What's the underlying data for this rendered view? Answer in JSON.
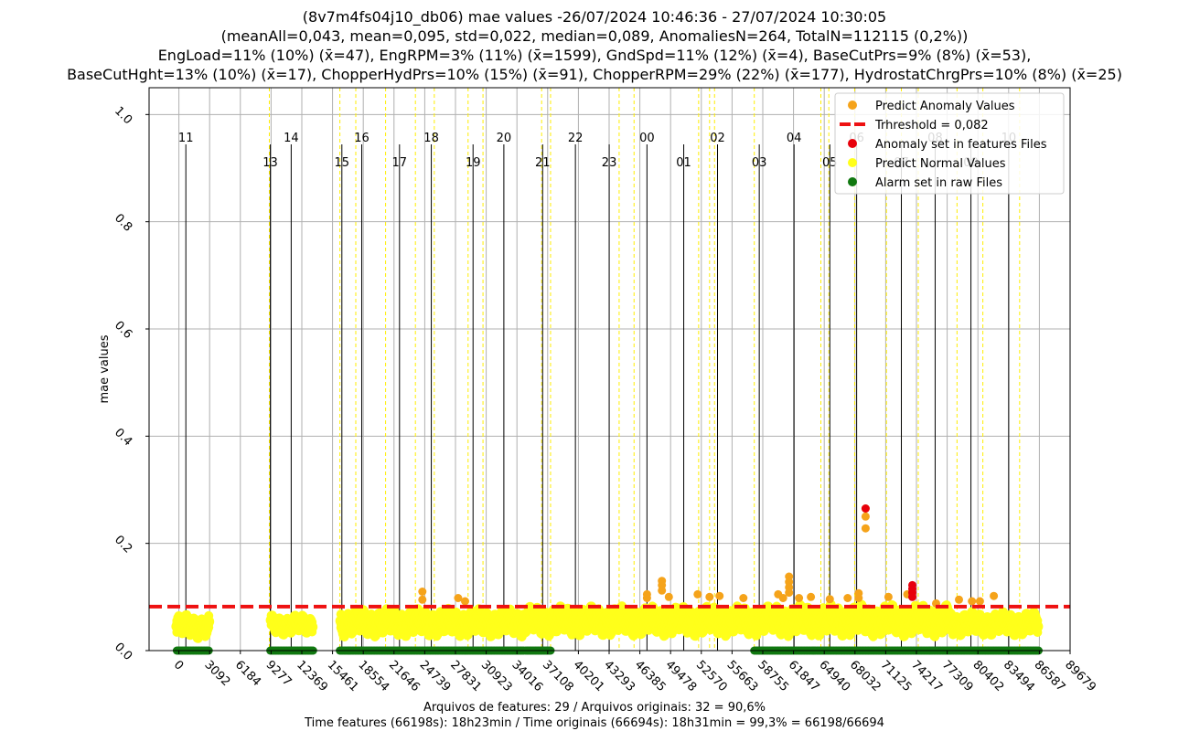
{
  "chart_data": {
    "type": "scatter",
    "title_lines": [
      "(8v7m4fs04j10_db06) mae values -26/07/2024 10:46:36 - 27/07/2024 10:30:05",
      "(meanAll=0,043, mean=0,095, std=0,022, median=0,089, AnomaliesN=264, TotalN=112115 (0,2%))",
      "EngLoad=11% (10%) (x̄=47), EngRPM=3% (11%) (x̄=1599), GndSpd=11% (12%) (x̄=4), BaseCutPrs=9% (8%) (x̄=53),",
      "BaseCutHght=13% (10%) (x̄=17), ChopperHydPrs=10% (15%) (x̄=91), ChopperRPM=29% (22%) (x̄=177), HydrostatChrgPrs=10% (8%) (x̄=25)"
    ],
    "ylabel": "mae values",
    "xlim": [
      -3000,
      89679
    ],
    "ylim": [
      0.0,
      1.05
    ],
    "x_ticks": [
      0,
      3092,
      6184,
      9277,
      12369,
      15461,
      18554,
      21646,
      24739,
      27831,
      30923,
      34016,
      37108,
      40201,
      43293,
      46385,
      49478,
      52570,
      55663,
      58755,
      61847,
      64940,
      68032,
      71125,
      74217,
      77309,
      80402,
      83494,
      86587,
      89679
    ],
    "y_ticks": [
      0.0,
      0.2,
      0.4,
      0.6,
      0.8,
      1.0
    ],
    "y_tick_labels": [
      "0.0",
      "0.2",
      "0.4",
      "0.6",
      "0.8",
      "1.0"
    ],
    "threshold": 0.082,
    "hour_lines": [
      {
        "label": "11",
        "x": 700,
        "row": 0
      },
      {
        "label": "13",
        "x": 9200,
        "row": 1
      },
      {
        "label": "14",
        "x": 11300,
        "row": 0
      },
      {
        "label": "15",
        "x": 16400,
        "row": 1
      },
      {
        "label": "16",
        "x": 18400,
        "row": 0
      },
      {
        "label": "17",
        "x": 22200,
        "row": 1
      },
      {
        "label": "18",
        "x": 25400,
        "row": 0
      },
      {
        "label": "19",
        "x": 29600,
        "row": 1
      },
      {
        "label": "20",
        "x": 32700,
        "row": 0
      },
      {
        "label": "21",
        "x": 36600,
        "row": 1
      },
      {
        "label": "22",
        "x": 39900,
        "row": 0
      },
      {
        "label": "23",
        "x": 43300,
        "row": 1
      },
      {
        "label": "00",
        "x": 47100,
        "row": 0
      },
      {
        "label": "01",
        "x": 50800,
        "row": 1
      },
      {
        "label": "02",
        "x": 54200,
        "row": 0
      },
      {
        "label": "03",
        "x": 58400,
        "row": 1
      },
      {
        "label": "04",
        "x": 61900,
        "row": 0
      },
      {
        "label": "05",
        "x": 65500,
        "row": 1
      },
      {
        "label": "06",
        "x": 68200,
        "row": 0
      },
      {
        "label": "07",
        "x": 72700,
        "row": 1
      },
      {
        "label": "08",
        "x": 76100,
        "row": 0
      },
      {
        "label": "09",
        "x": 79700,
        "row": 1
      },
      {
        "label": "10",
        "x": 83500,
        "row": 0
      }
    ],
    "file_boundaries": [
      9100,
      16200,
      17800,
      20800,
      23800,
      25700,
      29100,
      30600,
      36500,
      37400,
      44300,
      45800,
      52300,
      53400,
      53900,
      57900,
      64600,
      65400,
      68000,
      71200,
      72700,
      74400,
      78300,
      80900,
      84600
    ],
    "segments": [
      {
        "x0": -200,
        "x1": 3000,
        "base": 0.045,
        "amp": 0.012
      },
      {
        "x0": 9300,
        "x1": 13400,
        "base": 0.048,
        "amp": 0.01
      },
      {
        "x0": 16300,
        "x1": 34600,
        "base": 0.052,
        "amp": 0.014
      },
      {
        "x0": 34700,
        "x1": 59500,
        "base": 0.055,
        "amp": 0.015
      },
      {
        "x0": 59700,
        "x1": 77700,
        "base": 0.056,
        "amp": 0.016
      },
      {
        "x0": 77900,
        "x1": 86400,
        "base": 0.05,
        "amp": 0.012
      }
    ],
    "alarm_ranges": [
      [
        -200,
        3000
      ],
      [
        9200,
        13500
      ],
      [
        16200,
        34700
      ],
      [
        34900,
        37400
      ],
      [
        57900,
        86500
      ]
    ],
    "predict_anomaly_points": [
      [
        24500,
        0.11
      ],
      [
        24500,
        0.095
      ],
      [
        28100,
        0.098
      ],
      [
        28800,
        0.092
      ],
      [
        47100,
        0.105
      ],
      [
        47100,
        0.098
      ],
      [
        48600,
        0.13
      ],
      [
        48600,
        0.122
      ],
      [
        48600,
        0.112
      ],
      [
        49300,
        0.1
      ],
      [
        52200,
        0.105
      ],
      [
        53400,
        0.1
      ],
      [
        54400,
        0.102
      ],
      [
        56800,
        0.098
      ],
      [
        60300,
        0.105
      ],
      [
        60800,
        0.098
      ],
      [
        61400,
        0.138
      ],
      [
        61400,
        0.128
      ],
      [
        61400,
        0.118
      ],
      [
        61400,
        0.108
      ],
      [
        62400,
        0.098
      ],
      [
        63600,
        0.1
      ],
      [
        65500,
        0.096
      ],
      [
        67300,
        0.098
      ],
      [
        68400,
        0.107
      ],
      [
        68400,
        0.098
      ],
      [
        69100,
        0.228
      ],
      [
        69100,
        0.25
      ],
      [
        69100,
        0.265
      ],
      [
        71400,
        0.1
      ],
      [
        73300,
        0.105
      ],
      [
        76200,
        0.088
      ],
      [
        78500,
        0.095
      ],
      [
        79800,
        0.092
      ],
      [
        80600,
        0.092
      ],
      [
        82000,
        0.102
      ]
    ],
    "anomaly_feature_points": [
      [
        69100,
        0.265
      ],
      [
        73800,
        0.122
      ],
      [
        73800,
        0.115
      ],
      [
        73800,
        0.108
      ],
      [
        73800,
        0.1
      ]
    ],
    "legend": [
      {
        "label": "Predict Anomaly Values",
        "marker": "dot",
        "color": "#f5a31a"
      },
      {
        "label": "Trhreshold = 0,082",
        "marker": "dash",
        "color": "#ee1111"
      },
      {
        "label": "Anomaly set in features Files",
        "marker": "dot",
        "color": "#e8000b"
      },
      {
        "label": "Predict Normal Values",
        "marker": "dot",
        "color": "#ffff1a"
      },
      {
        "label": "Alarm set in raw Files",
        "marker": "dot",
        "color": "#107810"
      }
    ],
    "colors": {
      "normal": "#ffff1a",
      "predict_anomaly": "#f5a31a",
      "anomaly_feature": "#e8000b",
      "alarm": "#107810",
      "threshold": "#ee1111",
      "grid": "#b0b0b0",
      "boundary": "#ffee00"
    }
  },
  "footer": {
    "line1": "Arquivos de features: 29 / Arquivos originais: 32 = 90,6%",
    "line2": "Time features (66198s): 18h23min / Time originais (66694s): 18h31min = 99,3% = 66198/66694"
  }
}
